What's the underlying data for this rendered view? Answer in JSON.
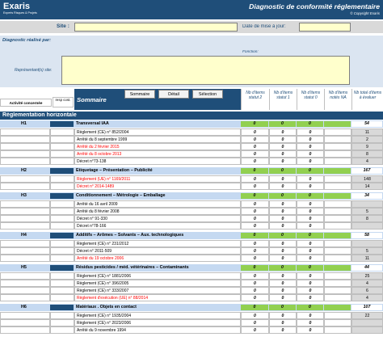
{
  "app": {
    "logo": "Exaris",
    "logo_tagline": "Experts Risques & Projets",
    "title": "Diagnostic de conformité réglementaire",
    "copyright": "© Copyright Exaris"
  },
  "form": {
    "site_label": "Site :",
    "date_label": "Date de mise à jour:",
    "diag_label": "Diagnostic réalisé par:",
    "fonction_label": "Fonction:",
    "rep_label": "Représentant(s) site:"
  },
  "toolbar": {
    "activite_label": "Activité concernée",
    "resp_label": "resp cost.",
    "sommaire_label": "Sommaire",
    "btn_sommaire": "Sommaire",
    "btn_detail": "Détail",
    "btn_selection": "Sélection"
  },
  "columns": [
    "Nb d'items statut 2",
    "Nb d'items statut 1",
    "Nb d'items statut 0",
    "Nb d'items notés NA",
    "Nb total d'items à évaluer"
  ],
  "section_title": "Réglementation horizontale",
  "colors": {
    "blue": "#1f4e79",
    "section": "#c5d9f1",
    "green": "#92d050",
    "red": "#ff0000"
  },
  "groups": [
    {
      "code": "H1",
      "title": "Transversal IAA",
      "total": "54",
      "items": [
        {
          "text": "Règlement (CE) n° 852/2004",
          "red": false,
          "total": "11"
        },
        {
          "text": "Arrêté du 8 septembre 1999",
          "red": false,
          "total": "2"
        },
        {
          "text": "Arrêté du 2 février 2015",
          "red": true,
          "total": "9"
        },
        {
          "text": "Arrêté du 8 octobre 2013",
          "red": true,
          "total": "8"
        },
        {
          "text": "Décret n°73-138",
          "red": false,
          "total": "4"
        }
      ]
    },
    {
      "code": "H2",
      "title": "Etiquetage – Présentation – Publicité",
      "total": "167",
      "items": [
        {
          "text": "Règlement (UE) n° 1169/2011",
          "red": true,
          "total": "148"
        },
        {
          "text": "Décret n° 2014-1489",
          "red": true,
          "total": "14"
        }
      ]
    },
    {
      "code": "H3",
      "title": "Conditionnement – Métrologie – Emballage",
      "total": "34",
      "items": [
        {
          "text": "Arrêté du 16 avril 2009",
          "red": false,
          "total": ""
        },
        {
          "text": "Arrêté du 8 février 2008",
          "red": false,
          "total": "5"
        },
        {
          "text": "Décret n° 91-330",
          "red": false,
          "total": "8"
        },
        {
          "text": "Décret n°78-166",
          "red": false,
          "total": ""
        }
      ]
    },
    {
      "code": "H4",
      "title": "Additifs – Arômes – Solvants – Aux. technologiques",
      "total": "58",
      "items": [
        {
          "text": "Règlement (CE) n° 231/2012",
          "red": false,
          "total": ""
        },
        {
          "text": "Décret n° 2011-509",
          "red": false,
          "total": "5"
        },
        {
          "text": "Arrêté du 19 octobre 2006",
          "red": true,
          "total": "11"
        }
      ]
    },
    {
      "code": "H5",
      "title": "Résidus pesticides / méd. vétérinaires – Contaminants",
      "total": "44",
      "items": [
        {
          "text": "Règlement (CE) n° 1881/2006",
          "red": false,
          "total": "25"
        },
        {
          "text": "Règlement (CE) n° 396/2005",
          "red": false,
          "total": "4"
        },
        {
          "text": "Règlement (CE) n° 333/2007",
          "red": false,
          "total": "6"
        },
        {
          "text": "Règlement d'exécution (UE) n° 88/2014",
          "red": true,
          "total": "4"
        }
      ]
    },
    {
      "code": "H6",
      "title": "Matériaux . Objets en contact",
      "total": "107",
      "items": [
        {
          "text": "Règlement (CE) n° 1935/2004",
          "red": false,
          "total": "22"
        },
        {
          "text": "Règlement (CE) n° 2023/2006",
          "red": false,
          "total": ""
        },
        {
          "text": "Arrêté du 9 novembre 1994",
          "red": false,
          "total": ""
        }
      ]
    }
  ]
}
